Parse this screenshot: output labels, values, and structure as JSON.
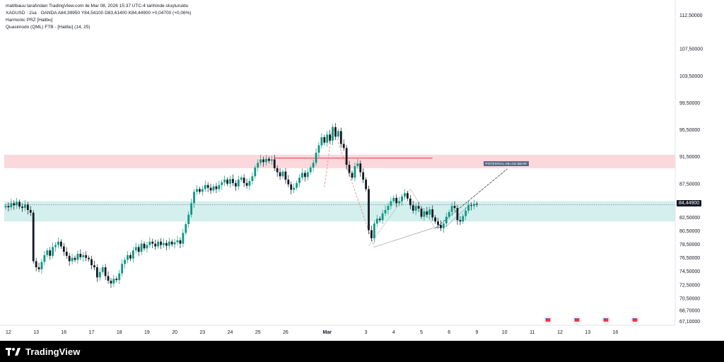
{
  "header": {
    "credit_line": "matilbauu tarafından TradingView.com ile Mar 08, 2026 15:37 UTC-4 tarihinde oluşturuldu",
    "ohlc_line": "XAGUSD · 2sa · OANDA  A84,39950  Y84,54100  D83,61400  K84,44900  +0,04700 (+0,06%)",
    "indicator_1": "Harmonic PRZ [Halibu]",
    "indicator_2": "Quasimodo (QML) FTB - [Halibu] (14, 25)"
  },
  "footer": {
    "brand": "TradingView",
    "brand_icon": "tradingview-logo-icon"
  },
  "annotation": {
    "label": "POTENTIAL AB=CD BEAR"
  },
  "colors": {
    "up": "#089981",
    "down": "#131722",
    "supply_zone": "#fbd8dc",
    "demand_zone": "#d3efee",
    "zone_line": "#f23645",
    "pattern": "#9aa0ab",
    "dashed_pattern": "#f28b8b",
    "event_flag": "#f23645"
  },
  "events": {
    "icon": "us-flag-event-icon",
    "count": 4
  },
  "chart_data": {
    "type": "candlestick",
    "symbol": "XAGUSD",
    "interval": "2sa",
    "exchange": "OANDA",
    "last_price": "84,44900",
    "ylim": [
      66.5,
      113.5
    ],
    "y_ticks": [
      {
        "value": 112.5,
        "label": "112,50000"
      },
      {
        "value": 107.5,
        "label": "107,50000"
      },
      {
        "value": 103.5,
        "label": "103,50000"
      },
      {
        "value": 99.5,
        "label": "99,50000"
      },
      {
        "value": 95.5,
        "label": "95,50000"
      },
      {
        "value": 91.5,
        "label": "91,50000"
      },
      {
        "value": 87.5,
        "label": "87,50000"
      },
      {
        "value": 82.5,
        "label": "82,50000"
      },
      {
        "value": 80.5,
        "label": "80,50000"
      },
      {
        "value": 78.5,
        "label": "78,50000"
      },
      {
        "value": 76.5,
        "label": "76,50000"
      },
      {
        "value": 74.5,
        "label": "74,50000"
      },
      {
        "value": 72.5,
        "label": "72,50000"
      },
      {
        "value": 70.5,
        "label": "70,50000"
      },
      {
        "value": 68.7,
        "label": "68,70000"
      },
      {
        "value": 67.1,
        "label": "67,10000"
      }
    ],
    "x_ticks": [
      {
        "i": 1,
        "label": "12"
      },
      {
        "i": 11,
        "label": "13"
      },
      {
        "i": 21,
        "label": "16"
      },
      {
        "i": 31,
        "label": "17"
      },
      {
        "i": 41,
        "label": "18"
      },
      {
        "i": 51,
        "label": "19"
      },
      {
        "i": 61,
        "label": "20"
      },
      {
        "i": 71,
        "label": "23"
      },
      {
        "i": 81,
        "label": "24"
      },
      {
        "i": 91,
        "label": "25"
      },
      {
        "i": 101,
        "label": "26"
      },
      {
        "i": 116,
        "label": "Mar",
        "bold": true
      },
      {
        "i": 130,
        "label": "3"
      },
      {
        "i": 140,
        "label": "4"
      },
      {
        "i": 150,
        "label": "5"
      },
      {
        "i": 160,
        "label": "6"
      },
      {
        "i": 170,
        "label": "9"
      },
      {
        "i": 180,
        "label": "10"
      },
      {
        "i": 190,
        "label": "11"
      },
      {
        "i": 200,
        "label": "12"
      },
      {
        "i": 210,
        "label": "13"
      },
      {
        "i": 220,
        "label": "16"
      }
    ],
    "zones": [
      {
        "name": "supply",
        "from": 89.8,
        "to": 91.8
      },
      {
        "name": "demand",
        "from": 81.9,
        "to": 84.9
      }
    ],
    "zone_line": {
      "y": 91.3,
      "i_from": 97,
      "i_to": 154
    },
    "closes": [
      84.2,
      84.0,
      84.6,
      84.3,
      84.8,
      84.1,
      83.9,
      84.4,
      83.6,
      83.2,
      76.0,
      75.1,
      74.8,
      75.9,
      76.9,
      77.6,
      76.8,
      78.1,
      78.4,
      78.9,
      78.2,
      77.4,
      76.8,
      76.0,
      76.5,
      76.2,
      77.1,
      76.6,
      76.9,
      76.5,
      76.3,
      75.4,
      75.1,
      73.6,
      74.4,
      75.1,
      73.8,
      73.1,
      72.7,
      73.4,
      73.2,
      74.2,
      75.6,
      76.2,
      76.9,
      76.4,
      77.6,
      78.1,
      77.4,
      78.6,
      77.9,
      78.4,
      78.9,
      78.6,
      78.2,
      78.9,
      78.4,
      78.7,
      78.3,
      78.9,
      78.5,
      78.8,
      79.1,
      78.6,
      80.2,
      81.5,
      82.9,
      84.6,
      86.3,
      86.7,
      86.3,
      86.7,
      87.3,
      86.9,
      86.5,
      87.1,
      86.7,
      87.3,
      87.7,
      88.1,
      87.5,
      88.2,
      87.6,
      87.1,
      88.1,
      88.4,
      87.6,
      87.2,
      87.9,
      88.6,
      89.9,
      90.6,
      91.1,
      90.7,
      91.2,
      90.9,
      91.1,
      89.8,
      89.2,
      88.6,
      89.3,
      88.1,
      87.4,
      86.6,
      86.9,
      87.6,
      88.4,
      89.1,
      88.5,
      89.2,
      89.9,
      90.6,
      92.1,
      93.2,
      94.4,
      93.6,
      94.8,
      93.9,
      95.9,
      94.5,
      95.3,
      93.4,
      92.8,
      90.3,
      89.1,
      88.4,
      90.1,
      90.5,
      89.2,
      88.1,
      86.7,
      80.6,
      79.4,
      81.6,
      82.3,
      82.1,
      83.1,
      83.6,
      84.2,
      84.9,
      85.4,
      84.6,
      84.9,
      85.6,
      86.1,
      85.3,
      84.3,
      83.5,
      84.2,
      83.8,
      82.6,
      83.4,
      82.9,
      83.7,
      82.5,
      81.9,
      81.4,
      80.9,
      81.6,
      82.6,
      83.3,
      84.2,
      83.9,
      82.1,
      81.9,
      82.7,
      83.5,
      84.3,
      84.2,
      84.5,
      84.4
    ],
    "pattern_solid": [
      [
        133,
        78.1
      ],
      [
        154,
        80.9
      ],
      [
        159,
        81.2
      ],
      [
        168,
        84.6
      ]
    ],
    "pattern_abcd": [
      [
        131,
        78.3
      ],
      [
        146,
        86.7
      ],
      [
        155,
        80.9
      ],
      [
        181,
        89.7
      ]
    ],
    "pattern_dashed": [
      [
        115,
        87.0
      ],
      [
        118,
        96.0
      ],
      [
        133,
        78.1
      ]
    ]
  }
}
